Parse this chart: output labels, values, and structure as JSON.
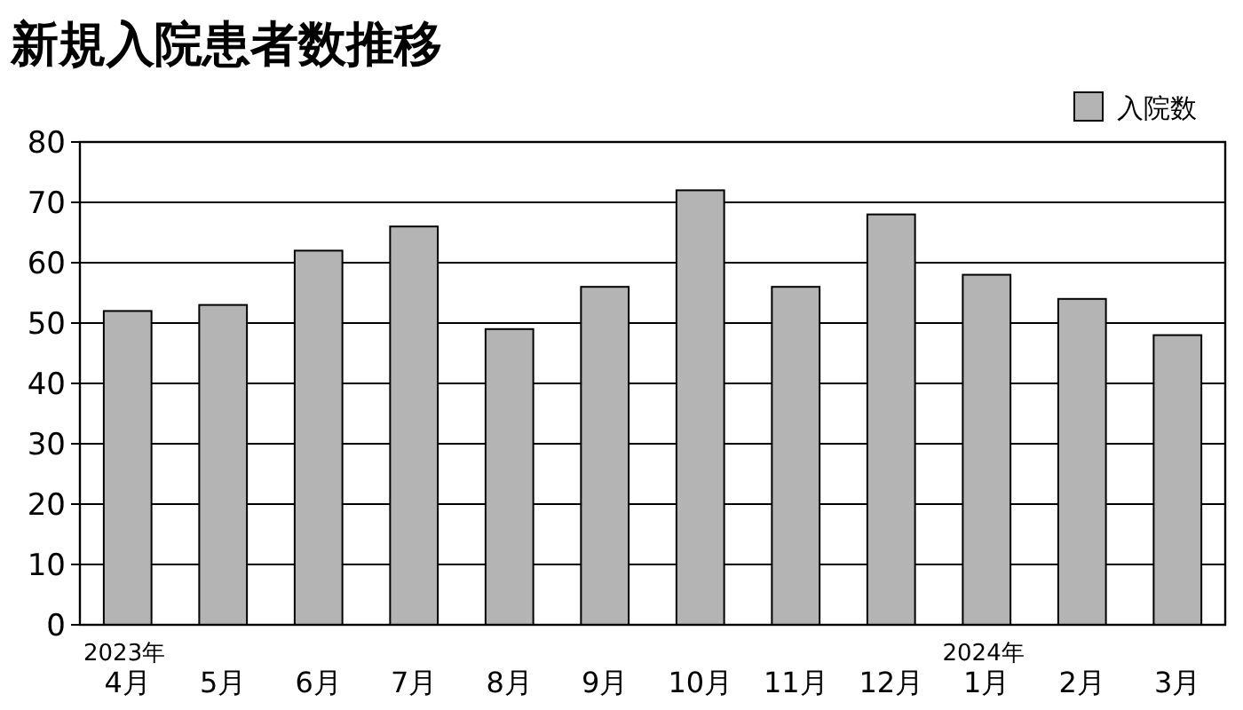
{
  "chart_data": {
    "type": "bar",
    "title": "新規入院患者数推移",
    "categories": [
      "2023年\n4月",
      "5月",
      "6月",
      "7月",
      "8月",
      "9月",
      "10月",
      "11月",
      "12月",
      "2024年\n1月",
      "2月",
      "3月"
    ],
    "series": [
      {
        "name": "入院数",
        "color": "#b4b4b4",
        "values": [
          52,
          53,
          62,
          66,
          49,
          56,
          72,
          56,
          68,
          58,
          54,
          48
        ]
      }
    ],
    "ylim": [
      0,
      80
    ],
    "yticks": [
      0,
      10,
      20,
      30,
      40,
      50,
      60,
      70,
      80
    ],
    "grid": "y",
    "legend": "top right"
  }
}
